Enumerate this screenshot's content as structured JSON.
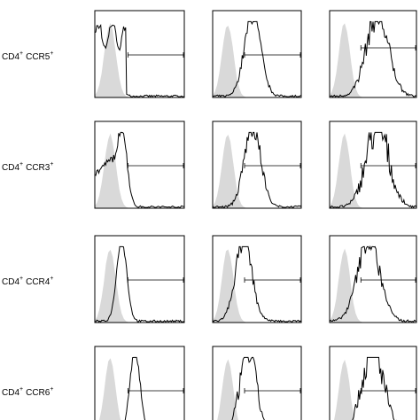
{
  "rows": [
    {
      "cell": "CD4",
      "cell_sign": "+",
      "marker": "CCR5",
      "marker_sign": "+"
    },
    {
      "cell": "CD4",
      "cell_sign": "+",
      "marker": "CCR3",
      "marker_sign": "+"
    },
    {
      "cell": "CD4",
      "cell_sign": "+",
      "marker": "CCR4",
      "marker_sign": "+"
    },
    {
      "cell": "CD4",
      "cell_sign": "+",
      "marker": "CCR6",
      "marker_sign": "+"
    }
  ]
}
